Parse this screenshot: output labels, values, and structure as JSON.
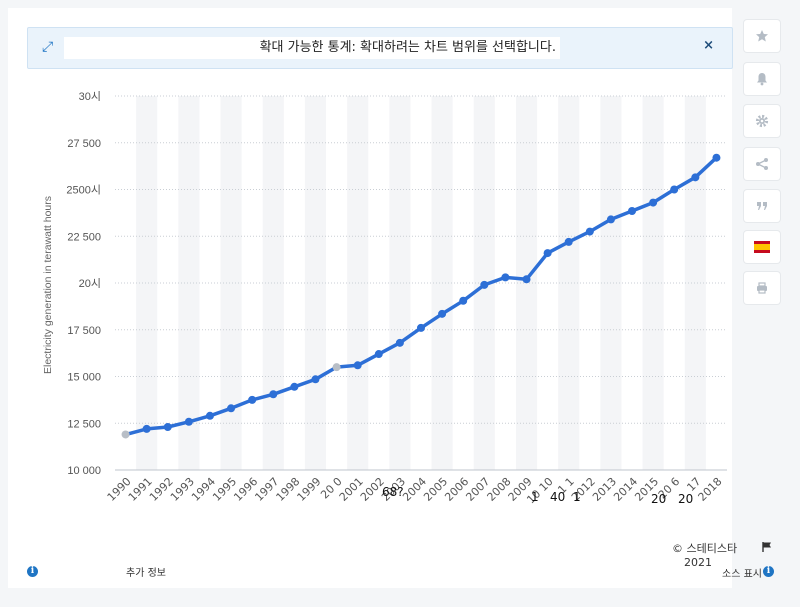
{
  "banner": {
    "message": "확대 가능한 통계: 확대하려는 차트 범위를 선택합니다.",
    "close": "×"
  },
  "sidebar": {
    "icons": [
      "star-icon",
      "bell-icon",
      "gear-icon",
      "share-icon",
      "quote-icon",
      "spain-flag-icon",
      "print-icon"
    ]
  },
  "chart_data": {
    "type": "line",
    "title": "",
    "xlabel": "",
    "ylabel": "Electricity generation in terawatt hours",
    "x": [
      "1990",
      "1991",
      "1992",
      "1993",
      "1994",
      "1995",
      "1996",
      "1997",
      "1998",
      "1999",
      "2000",
      "2001",
      "2002",
      "2003",
      "2004",
      "2005",
      "2006",
      "2007",
      "2008",
      "2009",
      "2010",
      "2011",
      "2012",
      "2013",
      "2014",
      "2015",
      "2016",
      "2017",
      "2018"
    ],
    "x_tick_labels": [
      "1990",
      "1991",
      "1992",
      "1993",
      "1994",
      "1995",
      "1996",
      "1997",
      "1998",
      "1999",
      "20 0",
      "2001",
      "2002",
      "2003",
      "2004",
      "2005",
      "2006",
      "2007",
      "2008",
      "2009",
      "10 10",
      "1 1",
      "2012",
      "2013",
      "2014",
      "2015",
      "20 6",
      "17",
      "2018"
    ],
    "series": [
      {
        "values": [
          11900,
          12200,
          12300,
          12580,
          12900,
          13300,
          13750,
          14050,
          14450,
          14850,
          15500,
          15600,
          16200,
          16800,
          17600,
          18350,
          19050,
          19900,
          20300,
          20200,
          21600,
          22200,
          22750,
          23400,
          23850,
          24300,
          25000,
          25650,
          26700
        ]
      }
    ],
    "y_tick_values": [
      10000,
      12500,
      15000,
      17500,
      20000,
      22500,
      25000,
      27500,
      30000
    ],
    "y_tick_labels": [
      "10 000",
      "12 500",
      "15 000",
      "17 500",
      "20시",
      "22 500",
      "2500시",
      "27 500",
      "30시"
    ],
    "ylim": [
      10000,
      30000
    ],
    "grid": true,
    "highlighted_points": [
      "1990",
      "2000"
    ],
    "line_color": "#2d6fd6",
    "highlight_color": "#b8bec6"
  },
  "stray_labels": {
    "a": "68?",
    "b": "1",
    "c": "40",
    "d": "1",
    "e": "20",
    "f": "20"
  },
  "footer": {
    "copyright": "© 스테티스타",
    "year": "2021",
    "more_info": "추가 정보",
    "show_source": "소스 표시"
  }
}
